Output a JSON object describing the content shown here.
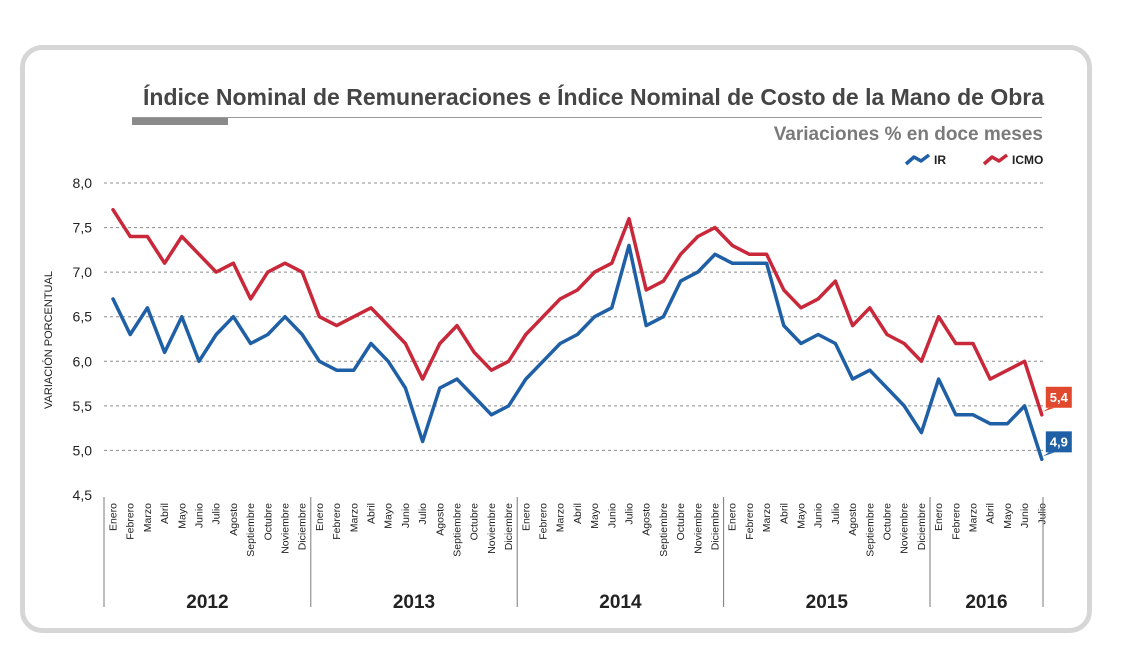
{
  "chart": {
    "title": "Índice Nominal de Remuneraciones e Índice Nominal de Costo de la Mano de Obra",
    "subtitle": "Variaciones % en doce meses",
    "ylabel": "VARIACIÓN PORCENTUAL"
  },
  "colors": {
    "IR": "#1f5fa6",
    "ICMO": "#c8283a",
    "grid": "#8c8c8c",
    "ICMO_label_bg": "#e0492e",
    "IR_label_bg": "#1f5fa6"
  },
  "chart_data": {
    "type": "line",
    "title": "Índice Nominal de Remuneraciones e Índice Nominal de Costo de la Mano de Obra",
    "subtitle": "Variaciones % en doce meses",
    "ylabel": "VARIACIÓN PORCENTUAL",
    "xlabel": "",
    "ylim": [
      4.5,
      8.0
    ],
    "yticks": [
      "8,0",
      "7,5",
      "7,0",
      "6,5",
      "6,0",
      "5,5",
      "5,0",
      "4,5"
    ],
    "grid": true,
    "legend_position": "top-right",
    "years": [
      {
        "label": "2012",
        "months": [
          "Enero",
          "Febrero",
          "Marzo",
          "Abril",
          "Mayo",
          "Junio",
          "Julio",
          "Agosto",
          "Septiembre",
          "Octubre",
          "Noviembre",
          "Diciembre"
        ]
      },
      {
        "label": "2013",
        "months": [
          "Enero",
          "Febrero",
          "Marzo",
          "Abril",
          "Mayo",
          "Junio",
          "Julio",
          "Agosto",
          "Septiembre",
          "Octubre",
          "Noviembre",
          "Diciembre"
        ]
      },
      {
        "label": "2014",
        "months": [
          "Enero",
          "Febrero",
          "Marzo",
          "Abril",
          "Mayo",
          "Junio",
          "Julio",
          "Agosto",
          "Septiembre",
          "Octubre",
          "Noviembre",
          "Diciembre"
        ]
      },
      {
        "label": "2015",
        "months": [
          "Enero",
          "Febrero",
          "Marzo",
          "Abril",
          "Mayo",
          "Junio",
          "Julio",
          "Agosto",
          "Septiembre",
          "Octubre",
          "Noviembre",
          "Diciembre"
        ]
      },
      {
        "label": "2016",
        "months": [
          "Enero",
          "Febrero",
          "Marzo",
          "Abril",
          "Mayo",
          "Junio",
          "Julio"
        ]
      }
    ],
    "series": [
      {
        "name": "IR",
        "end_label": "4,9",
        "values": [
          6.7,
          6.3,
          6.6,
          6.1,
          6.5,
          6.0,
          6.3,
          6.5,
          6.2,
          6.3,
          6.5,
          6.3,
          6.0,
          5.9,
          5.9,
          6.2,
          6.0,
          5.7,
          5.1,
          5.7,
          5.8,
          5.6,
          5.4,
          5.5,
          5.8,
          6.0,
          6.2,
          6.3,
          6.5,
          6.6,
          7.3,
          6.4,
          6.5,
          6.9,
          7.0,
          7.2,
          7.1,
          7.1,
          7.1,
          6.4,
          6.2,
          6.3,
          6.2,
          5.8,
          5.9,
          5.7,
          5.5,
          5.2,
          5.8,
          5.4,
          5.4,
          5.3,
          5.3,
          5.5,
          4.9
        ]
      },
      {
        "name": "ICMO",
        "end_label": "5,4",
        "values": [
          7.7,
          7.4,
          7.4,
          7.1,
          7.4,
          7.2,
          7.0,
          7.1,
          6.7,
          7.0,
          7.1,
          7.0,
          6.5,
          6.4,
          6.5,
          6.6,
          6.4,
          6.2,
          5.8,
          6.2,
          6.4,
          6.1,
          5.9,
          6.0,
          6.3,
          6.5,
          6.7,
          6.8,
          7.0,
          7.1,
          7.6,
          6.8,
          6.9,
          7.2,
          7.4,
          7.5,
          7.3,
          7.2,
          7.2,
          6.8,
          6.6,
          6.7,
          6.9,
          6.4,
          6.6,
          6.3,
          6.2,
          6.0,
          6.5,
          6.2,
          6.2,
          5.8,
          5.9,
          6.0,
          5.4
        ]
      }
    ]
  }
}
